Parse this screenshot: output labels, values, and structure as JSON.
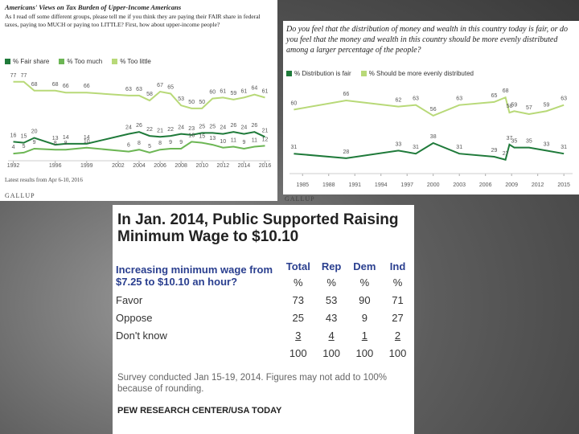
{
  "chart_data": [
    {
      "type": "line",
      "title": "Americans' Views on Tax Burden of Upper-Income Americans",
      "subtitle": "As I read off some different groups, please tell me if you think they are paying their FAIR share in federal taxes, paying too MUCH or paying too LITTLE? First, how about upper-income people?",
      "x": [
        1992,
        1993,
        1994,
        1996,
        1997,
        1999,
        2003,
        2004,
        2005,
        2006,
        2007,
        2008,
        2009,
        2010,
        2011,
        2012,
        2013,
        2014,
        2015,
        2016
      ],
      "series": [
        {
          "name": "% Fair share",
          "color": "#1f7a3a",
          "values": [
            16,
            15,
            20,
            13,
            14,
            14,
            24,
            26,
            22,
            21,
            22,
            24,
            23,
            25,
            25,
            24,
            26,
            24,
            26,
            21
          ]
        },
        {
          "name": "% Too much",
          "color": "#6cb654",
          "values": [
            4,
            5,
            9,
            8,
            8,
            10,
            6,
            8,
            5,
            8,
            9,
            9,
            16,
            15,
            13,
            10,
            11,
            9,
            11,
            12
          ]
        },
        {
          "name": "% Too little",
          "color": "#b8d978",
          "values": [
            77,
            77,
            68,
            68,
            66,
            66,
            63,
            63,
            58,
            67,
            65,
            53,
            50,
            50,
            60,
            61,
            59,
            61,
            64,
            61
          ]
        }
      ],
      "xlim": [
        1991.5,
        2016.5
      ],
      "ylim": [
        0,
        85
      ],
      "xticks": [
        1992,
        1996,
        1999,
        2002,
        2004,
        2006,
        2008,
        2010,
        2012,
        2014,
        2016
      ],
      "note": "Latest results from Apr 6-10, 2016",
      "source": "GALLUP"
    },
    {
      "type": "line",
      "title": "Do you feel that the distribution of money and wealth in this country today is fair, or do you feel that the money and wealth in this country should be more evenly distributed among a larger percentage of the people?",
      "x": [
        1984,
        1990,
        1996,
        1998,
        2000,
        2003,
        2007,
        2008.3,
        2008.75,
        2009.3,
        2011,
        2013,
        2015
      ],
      "series": [
        {
          "name": "% Distribution is fair",
          "color": "#1f7a3a",
          "values": [
            31,
            28,
            33,
            31,
            38,
            31,
            29,
            27,
            37,
            35,
            35,
            33,
            31
          ]
        },
        {
          "name": "% Should be more evenly distributed",
          "color": "#b8d978",
          "values": [
            60,
            66,
            62,
            63,
            56,
            63,
            65,
            68,
            58,
            59,
            57,
            59,
            63
          ]
        }
      ],
      "xlim": [
        1983.5,
        2016
      ],
      "ylim": [
        20,
        75
      ],
      "xticks": [
        1985,
        1988,
        1991,
        1994,
        1997,
        2000,
        2003,
        2006,
        2009,
        2012,
        2015
      ],
      "source": "GALLUP"
    }
  ],
  "table": {
    "title": "In Jan. 2014, Public Supported Raising Minimum Wage to $10.10",
    "question": "Increasing minimum wage from $7.25 to $10.10 an hour?",
    "columns": [
      "Total",
      "Rep",
      "Dem",
      "Ind"
    ],
    "units": [
      "%",
      "%",
      "%",
      "%"
    ],
    "rows": [
      {
        "label": "Favor",
        "values": [
          73,
          53,
          90,
          71
        ]
      },
      {
        "label": "Oppose",
        "values": [
          25,
          43,
          9,
          27
        ]
      },
      {
        "label": "Don't know",
        "values": [
          3,
          4,
          1,
          2
        ]
      }
    ],
    "totals": [
      100,
      100,
      100,
      100
    ],
    "note": "Survey conducted Jan 15-19, 2014. Figures may not add to 100% because of rounding.",
    "source": "PEW RESEARCH CENTER/USA TODAY"
  }
}
